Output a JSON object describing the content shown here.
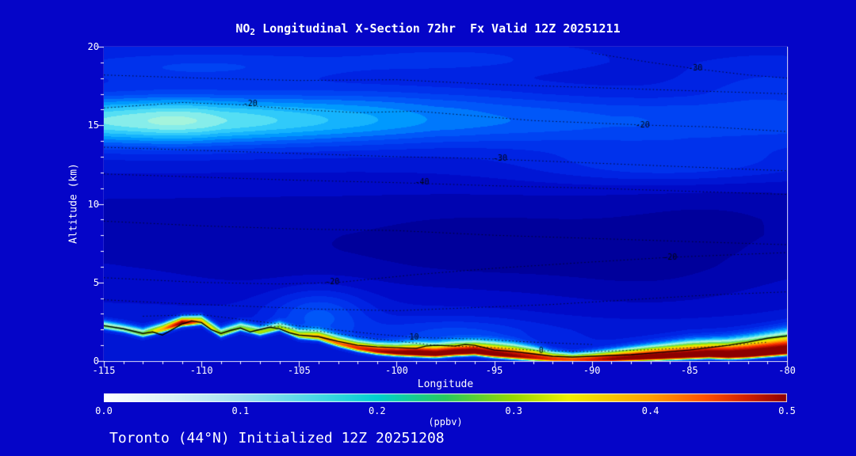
{
  "title": {
    "prefix": "NO",
    "sub": "2",
    "rest": " Longitudinal X-Section 72hr  Fx Valid 12Z 20251211"
  },
  "footer": "Toronto (44°N) Initialized 12Z 20251208",
  "axes": {
    "y_label": "Altitude (km)",
    "x_label": "Longitude",
    "x_ticks": [
      -115,
      -110,
      -105,
      -100,
      -95,
      -90,
      -85,
      -80
    ],
    "y_ticks": [
      0,
      5,
      10,
      15,
      20
    ],
    "x_range": [
      -115,
      -80
    ],
    "y_range": [
      0,
      20
    ]
  },
  "colorbar": {
    "ticks": [
      "0.0",
      "0.1",
      "0.2",
      "0.3",
      "0.4",
      "0.5"
    ],
    "tick_values": [
      0.0,
      0.1,
      0.2,
      0.3,
      0.4,
      0.5
    ],
    "range": [
      0,
      0.5
    ],
    "units": "(ppbv)",
    "stops": [
      [
        0.0,
        "#ffffff"
      ],
      [
        0.05,
        "#d8f0f8"
      ],
      [
        0.1,
        "#a0e0f0"
      ],
      [
        0.15,
        "#50d8e8"
      ],
      [
        0.2,
        "#00d0d0"
      ],
      [
        0.25,
        "#28c860"
      ],
      [
        0.3,
        "#98d800"
      ],
      [
        0.34,
        "#f0f000"
      ],
      [
        0.4,
        "#ffa000"
      ],
      [
        0.44,
        "#ff5000"
      ],
      [
        0.47,
        "#d02000"
      ],
      [
        0.5,
        "#8c0000"
      ]
    ]
  },
  "colors": {
    "background": "#0505c8",
    "text": "#ffffff",
    "axis": "#ffffff",
    "terrain_line": "#000000",
    "contour_line": "#000614"
  },
  "chart_data": {
    "type": "heatmap",
    "title": "NO2 Longitudinal X-Section 72hr  Fx Valid 12Z 20251211",
    "x_name": "longitude_degE",
    "y_name": "altitude_km",
    "units": "ppbv",
    "value_range_ppbv": [
      0,
      0.5
    ],
    "lons": [
      -115,
      -114,
      -113,
      -112,
      -111,
      -110,
      -109,
      -108,
      -107,
      -106,
      -105,
      -104,
      -103,
      -102,
      -101,
      -100,
      -99,
      -98,
      -97,
      -96,
      -95,
      -94,
      -93,
      -92,
      -91,
      -90,
      -89,
      -88,
      -87,
      -86,
      -85,
      -84,
      -83,
      -82,
      -81,
      -80
    ],
    "terrain_km": [
      2.2,
      2.0,
      1.7,
      2.0,
      2.4,
      2.5,
      1.7,
      2.1,
      1.8,
      2.1,
      1.6,
      1.5,
      1.1,
      0.8,
      0.6,
      0.5,
      0.45,
      0.4,
      0.5,
      0.55,
      0.4,
      0.3,
      0.2,
      0.1,
      0.07,
      0.07,
      0.1,
      0.15,
      0.2,
      0.25,
      0.3,
      0.35,
      0.3,
      0.35,
      0.45,
      0.55
    ],
    "surface_ppbv": [
      0.18,
      0.17,
      0.2,
      0.3,
      0.48,
      0.3,
      0.22,
      0.2,
      0.22,
      0.2,
      0.25,
      0.3,
      0.33,
      0.38,
      0.43,
      0.47,
      0.5,
      0.5,
      0.5,
      0.5,
      0.48,
      0.45,
      0.42,
      0.38,
      0.36,
      0.4,
      0.45,
      0.48,
      0.5,
      0.5,
      0.5,
      0.52,
      0.52,
      0.52,
      0.52,
      0.52
    ],
    "surface_depth_km": [
      0.25,
      0.25,
      0.25,
      0.25,
      0.25,
      0.25,
      0.25,
      0.25,
      0.25,
      0.25,
      0.25,
      0.28,
      0.3,
      0.3,
      0.32,
      0.35,
      0.4,
      0.4,
      0.4,
      0.4,
      0.45,
      0.45,
      0.4,
      0.3,
      0.25,
      0.3,
      0.35,
      0.4,
      0.45,
      0.5,
      0.55,
      0.55,
      0.6,
      0.65,
      0.7,
      0.75
    ],
    "strat_band": {
      "center_km": 15.3,
      "width_km": 1.6,
      "amp_ppbv": [
        0.115,
        0.12,
        0.125,
        0.13,
        0.13,
        0.125,
        0.115,
        0.11,
        0.105,
        0.1,
        0.095,
        0.09,
        0.085,
        0.08,
        0.075,
        0.07,
        0.065,
        0.06,
        0.058,
        0.055,
        0.052,
        0.05,
        0.048,
        0.046,
        0.044,
        0.042,
        0.04,
        0.04,
        0.038,
        0.038,
        0.036,
        0.036,
        0.035,
        0.035,
        0.034,
        0.034
      ]
    },
    "base_profile": {
      "alts_km": [
        0,
        1,
        2,
        3,
        4,
        5,
        6,
        7,
        8,
        9,
        10,
        11,
        12,
        13,
        14,
        15,
        16,
        17,
        18,
        19,
        20
      ],
      "ppbv": [
        0.07,
        0.07,
        0.068,
        0.06,
        0.055,
        0.05,
        0.045,
        0.042,
        0.04,
        0.04,
        0.042,
        0.048,
        0.055,
        0.06,
        0.065,
        0.068,
        0.066,
        0.06,
        0.062,
        0.065,
        0.065
      ]
    },
    "anomalies": [
      {
        "lon": -104,
        "alt": 3.0,
        "rlon": 2.5,
        "ralt": 1.6,
        "dppbv": 0.05
      },
      {
        "lon": -97,
        "alt": 1.8,
        "rlon": 4,
        "ralt": 1.0,
        "dppbv": 0.03
      },
      {
        "lon": -110,
        "alt": 18.7,
        "rlon": 8,
        "ralt": 1.0,
        "dppbv": 0.03
      },
      {
        "lon": -97,
        "alt": 19.2,
        "rlon": 6,
        "ralt": 0.9,
        "dppbv": 0.02
      },
      {
        "lon": -86,
        "alt": 12.5,
        "rlon": 7,
        "ralt": 1.3,
        "dppbv": 0.035
      },
      {
        "lon": -100,
        "alt": 16.8,
        "rlon": 8,
        "ralt": 1.0,
        "dppbv": 0.015
      },
      {
        "lon": -81,
        "alt": 17.5,
        "rlon": 4,
        "ralt": 1.5,
        "dppbv": 0.02
      },
      {
        "lon": -96,
        "alt": 7.0,
        "rlon": 7,
        "ralt": 2.5,
        "dppbv": -0.018
      },
      {
        "lon": -87,
        "alt": 5.0,
        "rlon": 6,
        "ralt": 2.5,
        "dppbv": -0.015
      },
      {
        "lon": -84,
        "alt": 9.0,
        "rlon": 6,
        "ralt": 3.0,
        "dppbv": -0.01
      },
      {
        "lon": -107,
        "alt": 6.5,
        "rlon": 5,
        "ralt": 2.5,
        "dppbv": -0.008
      }
    ],
    "field_colormap": [
      [
        0.0,
        "#000078"
      ],
      [
        0.03,
        "#0000a2"
      ],
      [
        0.05,
        "#000ac8"
      ],
      [
        0.08,
        "#0028e8"
      ],
      [
        0.11,
        "#0050f8"
      ],
      [
        0.14,
        "#00a0ff"
      ],
      [
        0.17,
        "#40d8f8"
      ],
      [
        0.19,
        "#90f0e8"
      ],
      [
        0.21,
        "#b8f8d0"
      ],
      [
        0.24,
        "#58e080"
      ],
      [
        0.28,
        "#a0e000"
      ],
      [
        0.32,
        "#f0f000"
      ],
      [
        0.38,
        "#ffa000"
      ],
      [
        0.43,
        "#ff4000"
      ],
      [
        0.47,
        "#d81800"
      ],
      [
        0.52,
        "#8c0000"
      ]
    ],
    "overlay_contours": [
      {
        "label": "-20",
        "points": [
          [
            -115,
            16.1
          ],
          [
            -111,
            16.45
          ],
          [
            -108,
            16.3
          ],
          [
            -105,
            16.0
          ],
          [
            -102,
            15.8
          ],
          [
            -99,
            15.9
          ],
          [
            -96,
            15.6
          ],
          [
            -93,
            15.3
          ],
          [
            -90,
            15.15
          ],
          [
            -87,
            15.0
          ],
          [
            -84,
            14.9
          ],
          [
            -80,
            14.6
          ]
        ],
        "labels_at": [
          [
            -107.5,
            16.35
          ],
          [
            -87.4,
            15.0
          ]
        ]
      },
      {
        "label": "-30",
        "points": [
          [
            -115,
            13.6
          ],
          [
            -110,
            13.4
          ],
          [
            -105,
            13.2
          ],
          [
            -100,
            13.0
          ],
          [
            -96,
            12.9
          ],
          [
            -92,
            12.7
          ],
          [
            -88,
            12.5
          ],
          [
            -84,
            12.3
          ],
          [
            -80,
            12.1
          ]
        ],
        "labels_at": [
          [
            -94.7,
            12.9
          ]
        ]
      },
      {
        "label": "-40",
        "points": [
          [
            -115,
            11.9
          ],
          [
            -110,
            11.7
          ],
          [
            -105,
            11.5
          ],
          [
            -100,
            11.35
          ],
          [
            -95,
            11.15
          ],
          [
            -90,
            11.0
          ],
          [
            -85,
            10.8
          ],
          [
            -80,
            10.6
          ]
        ],
        "labels_at": [
          [
            -98.7,
            11.35
          ]
        ]
      },
      {
        "label": "-30",
        "points": [
          [
            -90,
            19.6
          ],
          [
            -87,
            19.0
          ],
          [
            -84.7,
            18.6
          ],
          [
            -82,
            18.2
          ],
          [
            -80,
            18.0
          ]
        ],
        "labels_at": [
          [
            -84.7,
            18.6
          ]
        ]
      },
      {
        "label": "-20",
        "points": [
          [
            -115,
            5.3
          ],
          [
            -110,
            5.0
          ],
          [
            -106,
            4.9
          ],
          [
            -103,
            5.0
          ],
          [
            -99,
            5.5
          ],
          [
            -95,
            5.9
          ],
          [
            -90,
            6.3
          ],
          [
            -86,
            6.6
          ],
          [
            -82,
            6.8
          ],
          [
            -80,
            6.9
          ]
        ],
        "labels_at": [
          [
            -103.3,
            5.0
          ],
          [
            -86,
            6.6
          ]
        ]
      },
      {
        "label": "10",
        "points": [
          [
            -113,
            2.85
          ],
          [
            -110,
            2.95
          ],
          [
            -107,
            2.5
          ],
          [
            -104,
            2.1
          ],
          [
            -101,
            1.7
          ],
          [
            -99,
            1.5
          ],
          [
            -96,
            1.4
          ],
          [
            -93,
            1.2
          ],
          [
            -90,
            1.05
          ]
        ],
        "labels_at": [
          [
            -99.1,
            1.5
          ]
        ]
      },
      {
        "label": "0",
        "points": [
          [
            -107,
            2.3
          ],
          [
            -104,
            1.9
          ],
          [
            -101,
            1.4
          ],
          [
            -98,
            1.0
          ],
          [
            -95,
            0.85
          ],
          [
            -92.6,
            0.65
          ],
          [
            -90,
            0.6
          ],
          [
            -87,
            0.72
          ],
          [
            -84,
            0.9
          ],
          [
            -81,
            1.2
          ]
        ],
        "labels_at": [
          [
            -92.6,
            0.65
          ]
        ]
      },
      {
        "label": "",
        "points": [
          [
            -115,
            18.2
          ],
          [
            -110,
            18.0
          ],
          [
            -105,
            17.85
          ],
          [
            -100,
            17.9
          ],
          [
            -95,
            17.6
          ],
          [
            -90,
            17.4
          ],
          [
            -85,
            17.2
          ],
          [
            -80,
            17.0
          ]
        ],
        "labels_at": []
      },
      {
        "label": "",
        "points": [
          [
            -115,
            8.9
          ],
          [
            -110,
            8.6
          ],
          [
            -105,
            8.4
          ],
          [
            -100,
            8.3
          ],
          [
            -95,
            8.0
          ],
          [
            -90,
            7.8
          ],
          [
            -85,
            7.6
          ],
          [
            -80,
            7.4
          ]
        ],
        "labels_at": []
      },
      {
        "label": "",
        "points": [
          [
            -115,
            3.9
          ],
          [
            -112,
            3.7
          ],
          [
            -108,
            3.5
          ],
          [
            -104,
            3.3
          ],
          [
            -100,
            3.2
          ],
          [
            -96,
            3.4
          ],
          [
            -92,
            3.6
          ],
          [
            -88,
            3.9
          ],
          [
            -84,
            4.2
          ],
          [
            -80,
            4.4
          ]
        ],
        "labels_at": []
      }
    ],
    "surface_contour": {
      "points": [
        [
          -115,
          2.25
        ],
        [
          -114,
          2.05
        ],
        [
          -113,
          1.75
        ],
        [
          -112.5,
          1.85
        ],
        [
          -112,
          1.65
        ],
        [
          -111.5,
          2.0
        ],
        [
          -111,
          2.35
        ],
        [
          -110.5,
          2.55
        ],
        [
          -110,
          2.45
        ],
        [
          -109.5,
          2.0
        ],
        [
          -109,
          1.75
        ],
        [
          -108.5,
          1.95
        ],
        [
          -108,
          2.1
        ],
        [
          -107.5,
          1.85
        ],
        [
          -107,
          2.0
        ],
        [
          -106.5,
          2.15
        ],
        [
          -106,
          2.05
        ],
        [
          -105.5,
          1.8
        ],
        [
          -105,
          1.65
        ],
        [
          -104.5,
          1.6
        ],
        [
          -104,
          1.55
        ],
        [
          -103.5,
          1.4
        ],
        [
          -103,
          1.25
        ],
        [
          -102,
          1.0
        ],
        [
          -101,
          0.9
        ],
        [
          -100,
          0.85
        ],
        [
          -99,
          0.8
        ],
        [
          -98.5,
          0.95
        ],
        [
          -98,
          1.0
        ],
        [
          -97,
          0.95
        ],
        [
          -96.5,
          1.05
        ],
        [
          -96,
          1.0
        ],
        [
          -95.5,
          0.85
        ],
        [
          -95,
          0.7
        ],
        [
          -94,
          0.6
        ],
        [
          -93,
          0.45
        ],
        [
          -92,
          0.3
        ],
        [
          -91,
          0.25
        ],
        [
          -90,
          0.3
        ],
        [
          -89,
          0.35
        ],
        [
          -88,
          0.4
        ],
        [
          -87,
          0.5
        ],
        [
          -86,
          0.6
        ],
        [
          -85,
          0.7
        ],
        [
          -84,
          0.85
        ],
        [
          -83,
          1.0
        ],
        [
          -82,
          1.2
        ],
        [
          -81,
          1.45
        ],
        [
          -80,
          1.6
        ]
      ]
    }
  }
}
